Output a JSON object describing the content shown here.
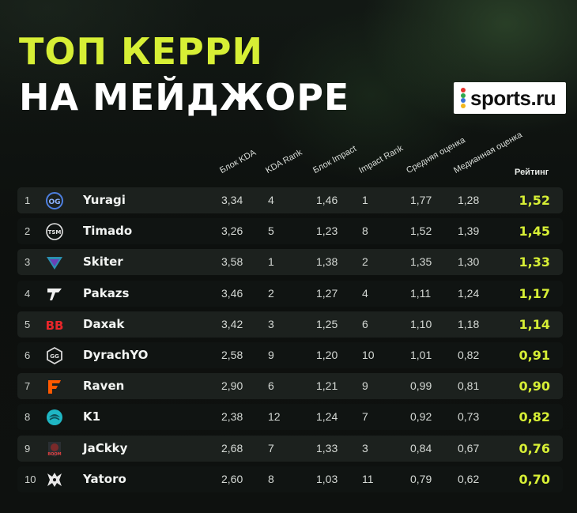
{
  "header": {
    "title_line1": "ТОП КЕРРИ",
    "title_line2": "НА МЕЙДЖОРЕ"
  },
  "brand": {
    "name": "sports.ru",
    "dot_colors": [
      "#e8322d",
      "#2fa84f",
      "#3a73d9",
      "#f2b71e"
    ]
  },
  "colors": {
    "accent": "#d7ef35",
    "background": "#0f1311",
    "row_odd": "#1c211e",
    "row_even": "#101412"
  },
  "chart_data": {
    "type": "table",
    "columns": [
      "Блок KDA",
      "KDA Rank",
      "Блок Impact",
      "Impact Rank",
      "Средняя оценка",
      "Медианная оценка",
      "Рейтинг"
    ],
    "rows": [
      {
        "rank": "1",
        "team_logo": "og-logo-icon",
        "player": "Yuragi",
        "kda": "3,34",
        "kda_rank": "4",
        "impact": "1,46",
        "impact_rank": "1",
        "avg": "1,77",
        "median": "1,28",
        "rating": "1,52"
      },
      {
        "rank": "2",
        "team_logo": "tsm-logo-icon",
        "player": "Timado",
        "kda": "3,26",
        "kda_rank": "5",
        "impact": "1,23",
        "impact_rank": "8",
        "avg": "1,52",
        "median": "1,39",
        "rating": "1,45"
      },
      {
        "rank": "3",
        "team_logo": "talon-logo-icon",
        "player": "Skiter",
        "kda": "3,58",
        "kda_rank": "1",
        "impact": "1,38",
        "impact_rank": "2",
        "avg": "1,35",
        "median": "1,30",
        "rating": "1,33"
      },
      {
        "rank": "4",
        "team_logo": "heroic-logo-icon",
        "player": "Pakazs",
        "kda": "3,46",
        "kda_rank": "2",
        "impact": "1,27",
        "impact_rank": "4",
        "avg": "1,11",
        "median": "1,24",
        "rating": "1,17"
      },
      {
        "rank": "5",
        "team_logo": "betboom-logo-icon",
        "player": "Daxak",
        "kda": "3,42",
        "kda_rank": "3",
        "impact": "1,25",
        "impact_rank": "6",
        "avg": "1,10",
        "median": "1,18",
        "rating": "1,14"
      },
      {
        "rank": "6",
        "team_logo": "gaimin-logo-icon",
        "player": "DyrachYO",
        "kda": "2,58",
        "kda_rank": "9",
        "impact": "1,20",
        "impact_rank": "10",
        "avg": "1,01",
        "median": "0,82",
        "rating": "0,91"
      },
      {
        "rank": "7",
        "team_logo": "fnatic-logo-icon",
        "player": "Raven",
        "kda": "2,90",
        "kda_rank": "6",
        "impact": "1,21",
        "impact_rank": "9",
        "avg": "0,99",
        "median": "0,81",
        "rating": "0,90"
      },
      {
        "rank": "8",
        "team_logo": "beastcoast-logo-icon",
        "player": "K1",
        "kda": "2,38",
        "kda_rank": "12",
        "impact": "1,24",
        "impact_rank": "7",
        "avg": "0,92",
        "median": "0,73",
        "rating": "0,82"
      },
      {
        "rank": "9",
        "team_logo": "boom-logo-icon",
        "player": "JaCkky",
        "kda": "2,68",
        "kda_rank": "7",
        "impact": "1,33",
        "impact_rank": "3",
        "avg": "0,84",
        "median": "0,67",
        "rating": "0,76"
      },
      {
        "rank": "10",
        "team_logo": "spirit-logo-icon",
        "player": "Yatoro",
        "kda": "2,60",
        "kda_rank": "8",
        "impact": "1,03",
        "impact_rank": "11",
        "avg": "0,79",
        "median": "0,62",
        "rating": "0,70"
      }
    ]
  }
}
